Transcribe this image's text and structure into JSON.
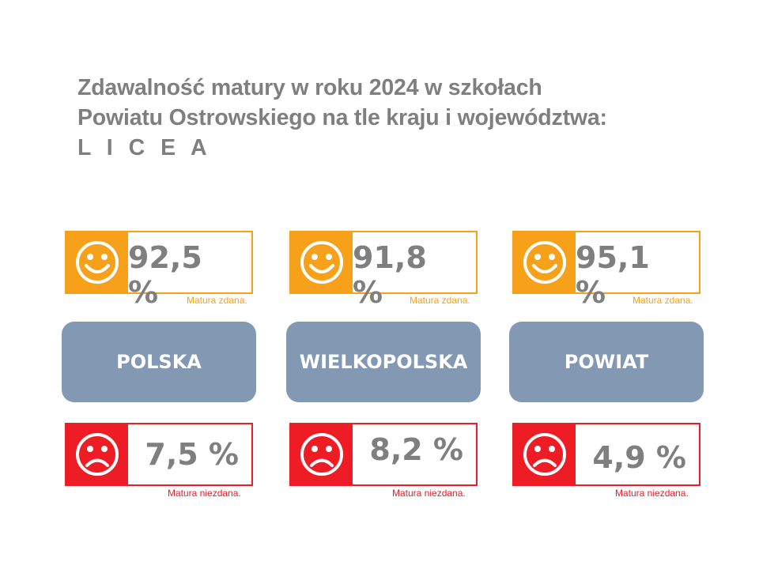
{
  "title": {
    "line1": "Zdawalność matury w roku 2024 w szkołach",
    "line2": "Powiatu Ostrowskiego na tle kraju i województwa:",
    "line3": "L I C E A"
  },
  "columns": [
    {
      "region": "POLSKA",
      "pass": {
        "value": "92,5 %",
        "caption": "Matura zdana."
      },
      "fail": {
        "value": "7,5 %",
        "caption": "Matura niezdana."
      }
    },
    {
      "region": "WIELKOPOLSKA",
      "pass": {
        "value": "91,8 %",
        "caption": "Matura zdana."
      },
      "fail": {
        "value": "8,2 %",
        "caption": "Matura niezdana."
      }
    },
    {
      "region": "POWIAT",
      "pass": {
        "value": "95,1 %",
        "caption": "Matura zdana."
      },
      "fail": {
        "value": "4,9 %",
        "caption": "Matura niezdana."
      }
    }
  ],
  "colors": {
    "pass": "#f7a01a",
    "fail": "#ee1c24",
    "region": "#8398b3",
    "text": "#7f7f7f"
  },
  "icons": {
    "pass": "smiley-face-icon",
    "fail": "sad-face-icon"
  }
}
